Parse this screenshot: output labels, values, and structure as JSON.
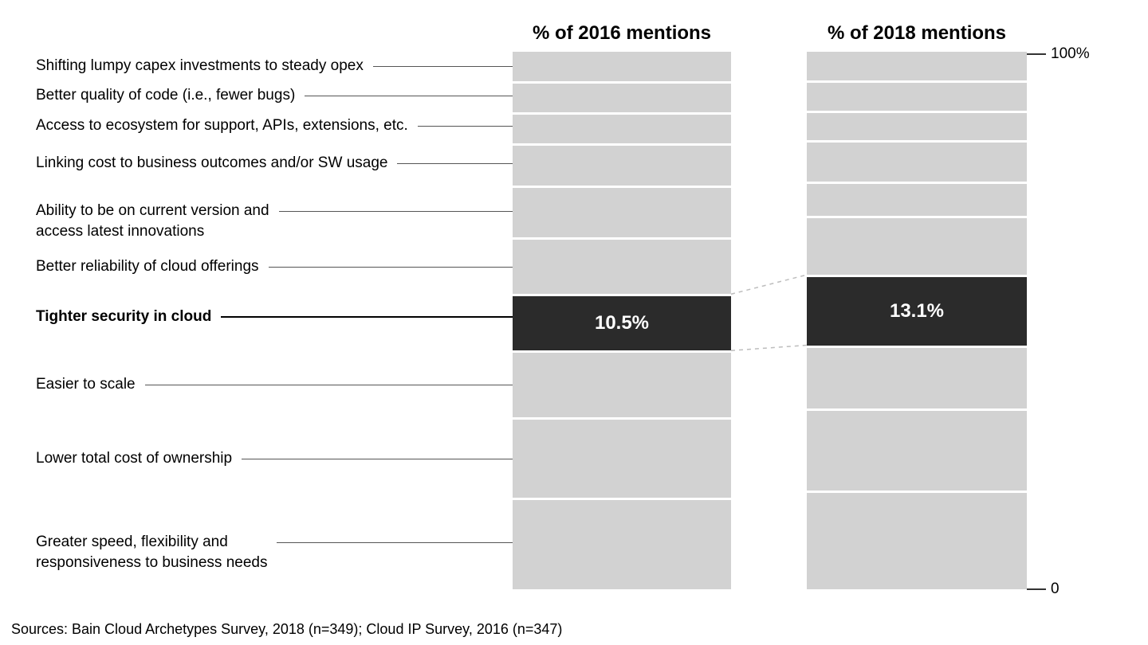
{
  "chart_data": {
    "type": "bar",
    "subtype": "100-percent-stacked-comparison",
    "title": "",
    "categories": [
      "Shifting lumpy capex investments to steady opex",
      "Better quality of code (i.e., fewer bugs)",
      "Access to ecosystem for support, APIs, extensions, etc.",
      "Linking cost to business outcomes and/or SW usage",
      "Ability to be on current version and\naccess latest innovations",
      "Better reliability of cloud offerings",
      "Tighter security in cloud",
      "Easier to scale",
      "Lower total cost of ownership",
      "Greater speed, flexibility and\nresponsiveness to business needs"
    ],
    "highlight_category": "Tighter security in cloud",
    "highlight_index": 6,
    "series": [
      {
        "name": "% of 2016 mentions",
        "highlight_label": "10.5%",
        "values": [
          5.5,
          5.7,
          5.8,
          7.9,
          9.6,
          10.6,
          10.5,
          12.4,
          14.9,
          17.1
        ]
      },
      {
        "name": "% of 2018 mentions",
        "highlight_label": "13.1%",
        "values": [
          5.3,
          5.6,
          5.6,
          7.6,
          6.4,
          11.0,
          13.1,
          11.8,
          15.3,
          18.3
        ]
      }
    ],
    "axis": {
      "top_label": "100%",
      "bottom_label": "0",
      "ylim": [
        0,
        100
      ]
    },
    "colors": {
      "segment": "#d2d2d2",
      "highlight": "#2b2b2b",
      "highlight_text": "#ffffff"
    },
    "legend": "none",
    "grid": false
  },
  "source": "Sources: Bain Cloud Archetypes Survey, 2018 (n=349); Cloud IP Survey, 2016 (n=347)"
}
